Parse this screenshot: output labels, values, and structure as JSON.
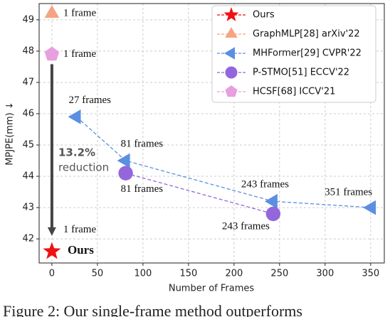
{
  "chart_data": {
    "type": "scatter",
    "x_label": "Number of Frames",
    "y_label": "MPJPE(mm) ↓",
    "xlim": [
      -14,
      365
    ],
    "ylim": [
      41.23,
      49.52
    ],
    "xticks": [
      0,
      50,
      100,
      150,
      200,
      250,
      300,
      350
    ],
    "yticks": [
      42,
      43,
      44,
      45,
      46,
      47,
      48,
      49
    ],
    "grid": true,
    "legend": "upper right",
    "series": [
      {
        "name": "Ours",
        "color": "#ee1111",
        "marker": "star",
        "x": [
          0
        ],
        "values": [
          41.6
        ],
        "point_labels": [
          "1 frame"
        ]
      },
      {
        "name": "GraphMLP[28] arXiv'22",
        "color": "#f5a483",
        "marker": "triangle-up",
        "x": [
          0
        ],
        "values": [
          49.2
        ],
        "point_labels": [
          "1 frame"
        ]
      },
      {
        "name": "MHFormer[29] CVPR'22",
        "color": "#5b8fe2",
        "marker": "triangle-left",
        "x": [
          27,
          81,
          243,
          351
        ],
        "values": [
          45.9,
          44.5,
          43.2,
          43.0
        ],
        "point_labels": [
          "27 frames",
          "81 frames",
          "243 frames",
          "351 frames"
        ]
      },
      {
        "name": "P-STMO[51] ECCV'22",
        "color": "#9466dc",
        "marker": "circle",
        "x": [
          81,
          243
        ],
        "values": [
          44.1,
          42.8
        ],
        "point_labels": [
          "81 frames",
          "243 frames"
        ]
      },
      {
        "name": "HCSF[68] ICCV'21",
        "color": "#e79fe0",
        "marker": "pentagon",
        "x": [
          0
        ],
        "values": [
          47.9
        ],
        "point_labels": [
          "1 frame"
        ]
      }
    ],
    "annotations": {
      "reduction_value": "13.2%",
      "reduction_text": "reduction",
      "ours_label": "Ours"
    },
    "caption": "Figure 2: Our single-frame method outperforms"
  }
}
